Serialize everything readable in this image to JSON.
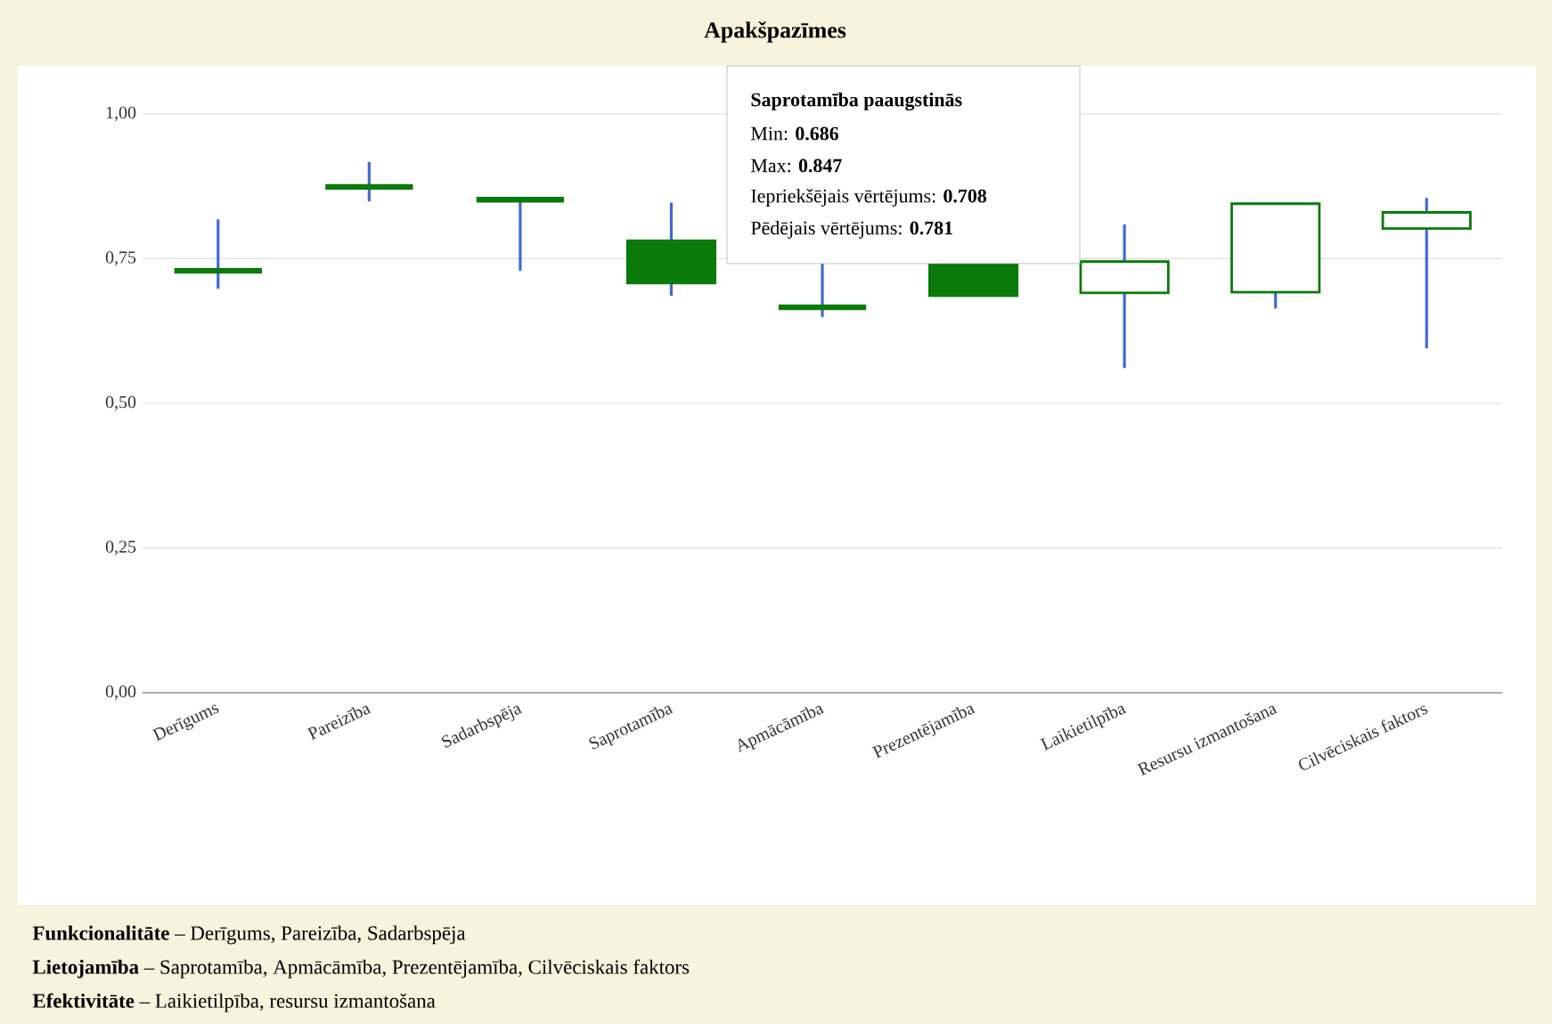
{
  "chart_data": {
    "type": "candlestick",
    "title": "Apakšpazīmes",
    "categories": [
      "Derīgums",
      "Pareizība",
      "Sadarbspēja",
      "Saprotamība",
      "Apmācāmība",
      "Prezentējamība",
      "Laikietilpība",
      "Resursu izmantošana",
      "Cilvēciskais faktors"
    ],
    "ohlc": [
      [
        0.727,
        0.818,
        0.698,
        0.731
      ],
      [
        0.872,
        0.917,
        0.849,
        0.876
      ],
      [
        0.85,
        0.854,
        0.729,
        0.854
      ],
      [
        0.708,
        0.847,
        0.686,
        0.781
      ],
      [
        0.664,
        0.745,
        0.649,
        0.668
      ],
      [
        0.686,
        0.74,
        0.686,
        0.74
      ],
      [
        0.745,
        0.809,
        0.561,
        0.691
      ],
      [
        0.845,
        0.845,
        0.664,
        0.692
      ],
      [
        0.83,
        0.855,
        0.595,
        0.802
      ]
    ],
    "color": "#0a7a0a",
    "ylim": [
      0,
      1
    ],
    "yticks": [
      {
        "value": 0,
        "label": "0,00"
      },
      {
        "value": 0.25,
        "label": "0,25"
      },
      {
        "value": 0.5,
        "label": "0,50"
      },
      {
        "value": 0.75,
        "label": "0,75"
      },
      {
        "value": 1,
        "label": "1,00"
      }
    ],
    "grid": "y",
    "annotations": [
      "Saprotamība paaugstinās",
      "Min: **0.686**",
      "Max: **0.847**",
      "Iepriekšējais vērtējums: **0.708**",
      "Pēdējais vērtējums: **0.781**",
      "**Funkcionalitāte** – Derīgums, Pareizība, Sadarbspēja",
      "**Lietojamība** – Saprotamība, Apmācāmība, Prezentējamība, Cilvēciskais faktors",
      "**Efektivitāte** – Laikietilpība, resursu izmantošana"
    ]
  }
}
